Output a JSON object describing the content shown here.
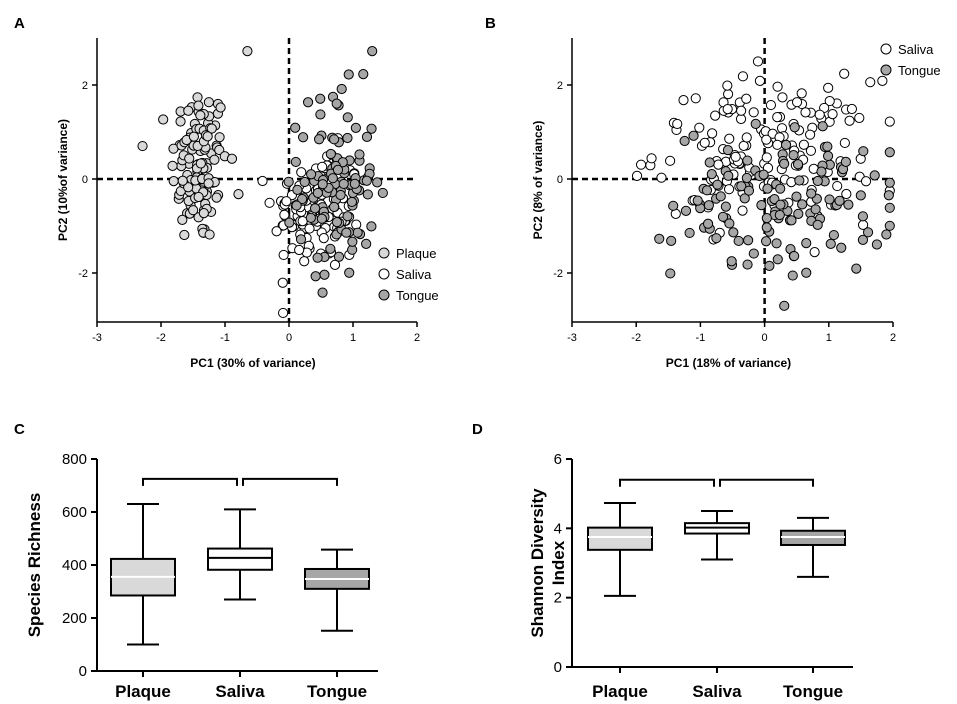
{
  "chart_data": [
    {
      "panel": "A",
      "type": "scatter",
      "xlabel": "PC1 (30% of variance)",
      "ylabel": "PC2 (10%of variance)",
      "xlim": [
        -3,
        2
      ],
      "ylim": [
        -3,
        3
      ],
      "xticks": [
        "-3",
        "-2",
        "-1",
        "0",
        "1",
        "2"
      ],
      "yticks": [
        "-2",
        "0",
        "2"
      ],
      "legend_position": "bottom-right",
      "series": [
        {
          "name": "Plaque",
          "color": "#d9d9d9",
          "cluster": {
            "cx": -1.4,
            "cy": 0.3,
            "sx": 0.22,
            "sy": 0.85,
            "n": 120
          }
        },
        {
          "name": "Saliva",
          "color": "#ffffff",
          "cluster": {
            "cx": 0.45,
            "cy": -0.7,
            "sx": 0.35,
            "sy": 0.65,
            "n": 110
          }
        },
        {
          "name": "Tongue",
          "color": "#a6a6a6",
          "cluster": {
            "cx": 0.75,
            "cy": -0.1,
            "sx": 0.3,
            "sy": 1.0,
            "n": 110
          }
        }
      ],
      "outliers": [
        {
          "series": "Plaque",
          "x": -0.65,
          "y": 2.72
        },
        {
          "series": "Tongue",
          "x": 1.3,
          "y": 2.72
        }
      ]
    },
    {
      "panel": "B",
      "type": "scatter",
      "xlabel": "PC1 (18% of variance)",
      "ylabel": "PC2 (8% of variance)",
      "xlim": [
        -3,
        2
      ],
      "ylim": [
        -3,
        3
      ],
      "xticks": [
        "-3",
        "-2",
        "-1",
        "0",
        "1",
        "2"
      ],
      "yticks": [
        "-2",
        "0",
        "2"
      ],
      "legend_position": "top-right",
      "series": [
        {
          "name": "Saliva",
          "color": "#ffffff",
          "cluster": {
            "cx": 0.0,
            "cy": 0.6,
            "sx": 0.85,
            "sy": 0.75,
            "n": 150
          }
        },
        {
          "name": "Tongue",
          "color": "#a6a6a6",
          "cluster": {
            "cx": 0.3,
            "cy": -0.5,
            "sx": 0.85,
            "sy": 0.8,
            "n": 130
          }
        }
      ]
    },
    {
      "panel": "C",
      "type": "box",
      "ylabel": "Species Richness",
      "ylim": [
        0,
        800
      ],
      "yticks": [
        "0",
        "200",
        "400",
        "600",
        "800"
      ],
      "categories": [
        "Plaque",
        "Saliva",
        "Tongue"
      ],
      "colors": [
        "#d9d9d9",
        "#ffffff",
        "#a6a6a6"
      ],
      "boxes": [
        {
          "min": 100,
          "q1": 285,
          "median": 355,
          "q3": 423,
          "max": 630
        },
        {
          "min": 270,
          "q1": 382,
          "median": 427,
          "q3": 462,
          "max": 610
        },
        {
          "min": 152,
          "q1": 310,
          "median": 347,
          "q3": 385,
          "max": 458
        }
      ],
      "brackets": [
        [
          0,
          1
        ],
        [
          1,
          2
        ]
      ],
      "bracket_value": 725
    },
    {
      "panel": "D",
      "type": "box",
      "ylabel_lines": [
        "Shannon Diversity",
        "Index"
      ],
      "ylim": [
        0,
        6
      ],
      "yticks": [
        "0",
        "2",
        "4",
        "6"
      ],
      "categories": [
        "Plaque",
        "Saliva",
        "Tongue"
      ],
      "colors": [
        "#d9d9d9",
        "#ffffff",
        "#a6a6a6"
      ],
      "boxes": [
        {
          "min": 2.05,
          "q1": 3.38,
          "median": 3.75,
          "q3": 4.02,
          "max": 4.73
        },
        {
          "min": 3.1,
          "q1": 3.85,
          "median": 4.02,
          "q3": 4.15,
          "max": 4.5
        },
        {
          "min": 2.6,
          "q1": 3.52,
          "median": 3.75,
          "q3": 3.93,
          "max": 4.3
        }
      ],
      "brackets": [
        [
          0,
          1
        ],
        [
          1,
          2
        ]
      ],
      "bracket_value": 5.4
    }
  ],
  "panel_labels": [
    "A",
    "B",
    "C",
    "D"
  ]
}
